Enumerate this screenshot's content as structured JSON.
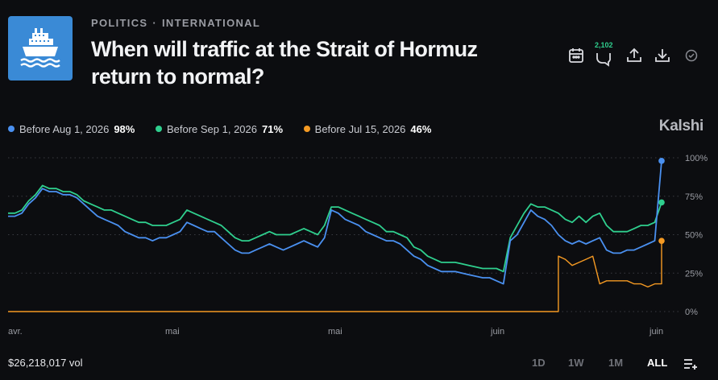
{
  "market": {
    "categories": [
      "POLITICS",
      "INTERNATIONAL"
    ],
    "separator": "·",
    "title": "When will traffic at the Strait of Hormuz return to normal?",
    "thumbnail_icon": "ship-icon"
  },
  "actions": {
    "calendar_icon": "calendar-icon",
    "comments_icon": "comment-icon",
    "comments_count": "2,102",
    "share_icon": "share-icon",
    "download_icon": "download-icon",
    "check_icon": "check-circle-icon",
    "badge_color": "#2fcf8e"
  },
  "brand": "Kalshi",
  "footer": {
    "volume": "$26,218,017 vol",
    "ranges": [
      "1D",
      "1W",
      "1M",
      "ALL"
    ],
    "active_range": "ALL",
    "filter_icon": "list-plus-icon"
  },
  "chart_data": {
    "type": "line",
    "y_unit": "%",
    "ylim": [
      0,
      100
    ],
    "yticks": [
      "100%",
      "75%",
      "50%",
      "25%",
      "0%"
    ],
    "xtick_labels": [
      "avr.",
      "mai",
      "mai",
      "juin",
      "juin"
    ],
    "grid": "horizontal-dotted",
    "legend_placement": "top-left",
    "series": [
      {
        "name": "Before Aug 1, 2026",
        "current": "98%",
        "color": "#4a90f0",
        "values": [
          62,
          62,
          64,
          70,
          74,
          80,
          78,
          78,
          76,
          76,
          74,
          70,
          66,
          62,
          60,
          58,
          56,
          52,
          50,
          48,
          48,
          46,
          48,
          48,
          50,
          52,
          58,
          56,
          54,
          52,
          52,
          48,
          44,
          40,
          38,
          38,
          40,
          42,
          44,
          42,
          40,
          42,
          44,
          46,
          44,
          42,
          48,
          66,
          64,
          60,
          58,
          56,
          52,
          50,
          48,
          46,
          46,
          44,
          40,
          36,
          34,
          30,
          28,
          26,
          26,
          26,
          25,
          24,
          23,
          22,
          22,
          20,
          18,
          46,
          50,
          58,
          66,
          62,
          60,
          56,
          50,
          46,
          44,
          46,
          44,
          46,
          48,
          40,
          38,
          38,
          40,
          40,
          42,
          44,
          46,
          98
        ]
      },
      {
        "name": "Before Sep 1, 2026",
        "current": "71%",
        "color": "#2fcf8e",
        "values": [
          64,
          64,
          66,
          72,
          76,
          82,
          80,
          80,
          78,
          78,
          76,
          72,
          70,
          68,
          66,
          66,
          64,
          62,
          60,
          58,
          58,
          56,
          56,
          56,
          58,
          60,
          66,
          64,
          62,
          60,
          58,
          56,
          52,
          48,
          46,
          46,
          48,
          50,
          52,
          50,
          50,
          50,
          52,
          54,
          52,
          50,
          56,
          68,
          68,
          66,
          64,
          62,
          60,
          58,
          56,
          52,
          52,
          50,
          48,
          42,
          40,
          36,
          34,
          32,
          32,
          32,
          31,
          30,
          29,
          28,
          28,
          28,
          26,
          48,
          56,
          64,
          70,
          68,
          68,
          66,
          64,
          60,
          58,
          62,
          58,
          62,
          64,
          56,
          52,
          52,
          52,
          54,
          56,
          56,
          58,
          71
        ]
      },
      {
        "name": "Before Jul 15, 2026",
        "current": "46%",
        "color": "#f59a23",
        "values": [
          0,
          0,
          0,
          0,
          0,
          0,
          0,
          0,
          0,
          0,
          0,
          0,
          0,
          0,
          0,
          0,
          0,
          0,
          0,
          0,
          0,
          0,
          0,
          0,
          0,
          0,
          0,
          0,
          0,
          0,
          0,
          0,
          0,
          0,
          0,
          0,
          0,
          0,
          0,
          0,
          0,
          0,
          0,
          0,
          0,
          0,
          0,
          0,
          0,
          0,
          0,
          0,
          0,
          0,
          0,
          0,
          0,
          0,
          0,
          0,
          0,
          0,
          0,
          0,
          0,
          0,
          0,
          0,
          0,
          0,
          0,
          0,
          0,
          0,
          0,
          0,
          0,
          0,
          0,
          0,
          36,
          34,
          30,
          32,
          34,
          36,
          18,
          20,
          20,
          20,
          20,
          18,
          18,
          16,
          18,
          46
        ]
      }
    ]
  }
}
